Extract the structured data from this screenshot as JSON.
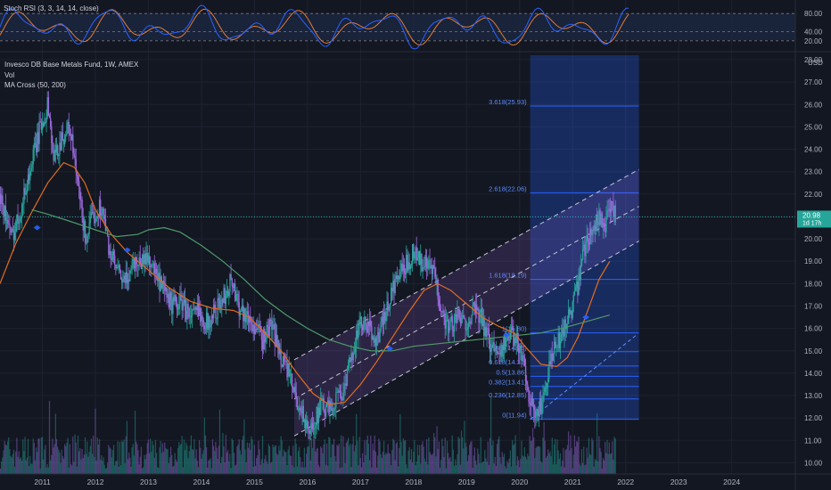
{
  "oscillator": {
    "title": "Stoch RSI (3, 3, 14, 14, close)",
    "levels": [
      80,
      40,
      20
    ],
    "level_labels": [
      "80.00",
      "40.00",
      "20.00"
    ]
  },
  "main": {
    "symbol_line": "Invesco DB Base Metals Fund, 1W, AMEX",
    "vol_label": "Vol",
    "ma_label": "MA Cross (50, 200)"
  },
  "colors": {
    "background": "#131722",
    "candle_up": "#26a69a",
    "candle_down": "#9c6ade",
    "ma50": "#e06c1f",
    "ma200": "#4f9a6a",
    "channel": "#c3c7d0",
    "fib": "#2962ff",
    "price_line": "#26a69a",
    "stoch_k": "#2962ff",
    "stoch_d": "#e07b39"
  },
  "chart_data": {
    "type": "candlestick",
    "title": "Invesco DB Base Metals Fund, 1W, AMEX",
    "currency": "USD",
    "price_axis": {
      "ylim": [
        9.5,
        28.2
      ],
      "tick_labels": [
        "28.00",
        "27.00",
        "26.00",
        "25.00",
        "24.00",
        "23.00",
        "22.00",
        "21.00",
        "20.00",
        "19.00",
        "18.00",
        "17.00",
        "16.00",
        "15.00",
        "14.00",
        "13.00",
        "12.00",
        "11.00",
        "10.00"
      ],
      "ticks": [
        28,
        27,
        26,
        25,
        24,
        23,
        22,
        21,
        20,
        19,
        18,
        17,
        16,
        15,
        14,
        13,
        12,
        11,
        10
      ]
    },
    "time_axis": {
      "tick_labels": [
        "2011",
        "2012",
        "2013",
        "2014",
        "2015",
        "2016",
        "2017",
        "2018",
        "2019",
        "2020",
        "2021",
        "2022",
        "2023",
        "2024"
      ],
      "ticks": [
        2011,
        2012,
        2013,
        2014,
        2015,
        2016,
        2017,
        2018,
        2019,
        2020,
        2021,
        2022,
        2023,
        2024
      ],
      "xlim": [
        2010.2,
        2025.2
      ]
    },
    "last_price": {
      "value": 20.98,
      "label": "20.98",
      "countdown": "1d 17h"
    },
    "price_path": [
      [
        2010.2,
        22.0
      ],
      [
        2010.4,
        20.0
      ],
      [
        2010.6,
        21.5
      ],
      [
        2010.8,
        23.5
      ],
      [
        2010.95,
        25.0
      ],
      [
        2011.1,
        26.0
      ],
      [
        2011.2,
        23.5
      ],
      [
        2011.35,
        24.5
      ],
      [
        2011.5,
        25.0
      ],
      [
        2011.65,
        22.5
      ],
      [
        2011.8,
        20.0
      ],
      [
        2011.95,
        21.0
      ],
      [
        2012.1,
        21.5
      ],
      [
        2012.25,
        19.5
      ],
      [
        2012.4,
        18.5
      ],
      [
        2012.55,
        18.0
      ],
      [
        2012.7,
        19.0
      ],
      [
        2012.85,
        19.0
      ],
      [
        2013.0,
        19.2
      ],
      [
        2013.15,
        18.2
      ],
      [
        2013.3,
        17.5
      ],
      [
        2013.45,
        17.0
      ],
      [
        2013.6,
        17.2
      ],
      [
        2013.8,
        16.5
      ],
      [
        2013.95,
        16.8
      ],
      [
        2014.1,
        16.2
      ],
      [
        2014.25,
        16.8
      ],
      [
        2014.4,
        17.3
      ],
      [
        2014.55,
        18.2
      ],
      [
        2014.7,
        17.0
      ],
      [
        2014.85,
        16.5
      ],
      [
        2015.0,
        16.0
      ],
      [
        2015.15,
        15.5
      ],
      [
        2015.3,
        16.2
      ],
      [
        2015.45,
        15.0
      ],
      [
        2015.6,
        14.2
      ],
      [
        2015.75,
        13.0
      ],
      [
        2015.9,
        12.2
      ],
      [
        2016.0,
        11.2
      ],
      [
        2016.1,
        11.8
      ],
      [
        2016.25,
        12.5
      ],
      [
        2016.4,
        12.3
      ],
      [
        2016.55,
        13.0
      ],
      [
        2016.7,
        13.3
      ],
      [
        2016.85,
        15.2
      ],
      [
        2017.0,
        16.2
      ],
      [
        2017.15,
        16.0
      ],
      [
        2017.3,
        15.5
      ],
      [
        2017.45,
        16.5
      ],
      [
        2017.6,
        17.8
      ],
      [
        2017.75,
        18.5
      ],
      [
        2017.9,
        19.0
      ],
      [
        2018.0,
        19.6
      ],
      [
        2018.1,
        19.0
      ],
      [
        2018.2,
        18.8
      ],
      [
        2018.35,
        18.6
      ],
      [
        2018.5,
        17.0
      ],
      [
        2018.65,
        16.0
      ],
      [
        2018.8,
        16.5
      ],
      [
        2018.95,
        16.2
      ],
      [
        2019.1,
        16.8
      ],
      [
        2019.25,
        16.5
      ],
      [
        2019.4,
        15.5
      ],
      [
        2019.55,
        15.0
      ],
      [
        2019.7,
        15.3
      ],
      [
        2019.85,
        15.7
      ],
      [
        2020.0,
        15.2
      ],
      [
        2020.1,
        14.0
      ],
      [
        2020.2,
        12.6
      ],
      [
        2020.3,
        11.95
      ],
      [
        2020.45,
        13.0
      ],
      [
        2020.6,
        14.8
      ],
      [
        2020.75,
        15.5
      ],
      [
        2020.9,
        16.5
      ],
      [
        2021.0,
        17.0
      ],
      [
        2021.1,
        18.0
      ],
      [
        2021.2,
        19.5
      ],
      [
        2021.35,
        20.5
      ],
      [
        2021.5,
        21.0
      ],
      [
        2021.6,
        20.5
      ],
      [
        2021.7,
        21.3
      ],
      [
        2021.8,
        20.98
      ]
    ],
    "indicators": [
      {
        "name": "MA 50",
        "color": "#e06c1f",
        "points": [
          [
            2010.2,
            18.0
          ],
          [
            2010.5,
            19.8
          ],
          [
            2010.8,
            21.2
          ],
          [
            2011.1,
            22.5
          ],
          [
            2011.4,
            23.4
          ],
          [
            2011.6,
            23.2
          ],
          [
            2011.8,
            22.5
          ],
          [
            2012.0,
            21.3
          ],
          [
            2012.3,
            20.2
          ],
          [
            2012.6,
            19.4
          ],
          [
            2013.0,
            18.6
          ],
          [
            2013.4,
            17.8
          ],
          [
            2013.8,
            17.2
          ],
          [
            2014.2,
            16.9
          ],
          [
            2014.6,
            16.8
          ],
          [
            2014.9,
            16.5
          ],
          [
            2015.2,
            15.8
          ],
          [
            2015.5,
            15.0
          ],
          [
            2015.8,
            14.0
          ],
          [
            2016.1,
            13.1
          ],
          [
            2016.4,
            12.6
          ],
          [
            2016.7,
            12.7
          ],
          [
            2017.0,
            13.5
          ],
          [
            2017.3,
            14.5
          ],
          [
            2017.6,
            15.6
          ],
          [
            2017.9,
            16.7
          ],
          [
            2018.2,
            17.7
          ],
          [
            2018.45,
            18.0
          ],
          [
            2018.7,
            17.7
          ],
          [
            2019.0,
            17.1
          ],
          [
            2019.3,
            16.5
          ],
          [
            2019.6,
            16.1
          ],
          [
            2019.9,
            15.8
          ],
          [
            2020.1,
            15.2
          ],
          [
            2020.4,
            14.4
          ],
          [
            2020.7,
            14.3
          ],
          [
            2020.9,
            14.7
          ],
          [
            2021.1,
            15.6
          ],
          [
            2021.3,
            16.9
          ],
          [
            2021.5,
            18.2
          ],
          [
            2021.7,
            19.0
          ]
        ]
      },
      {
        "name": "MA 200",
        "color": "#4f9a6a",
        "points": [
          [
            2010.8,
            21.3
          ],
          [
            2011.1,
            21.1
          ],
          [
            2011.5,
            20.8
          ],
          [
            2012.0,
            20.4
          ],
          [
            2012.4,
            20.1
          ],
          [
            2012.8,
            20.2
          ],
          [
            2013.0,
            20.4
          ],
          [
            2013.3,
            20.5
          ],
          [
            2013.6,
            20.3
          ],
          [
            2014.0,
            19.7
          ],
          [
            2014.4,
            19.0
          ],
          [
            2014.8,
            18.2
          ],
          [
            2015.2,
            17.3
          ],
          [
            2015.6,
            16.6
          ],
          [
            2016.0,
            16.0
          ],
          [
            2016.4,
            15.5
          ],
          [
            2016.8,
            15.2
          ],
          [
            2017.2,
            15.0
          ],
          [
            2017.6,
            15.0
          ],
          [
            2018.0,
            15.2
          ],
          [
            2018.4,
            15.3
          ],
          [
            2018.8,
            15.4
          ],
          [
            2019.2,
            15.5
          ],
          [
            2019.6,
            15.6
          ],
          [
            2020.0,
            15.7
          ],
          [
            2020.4,
            15.8
          ],
          [
            2020.8,
            16.0
          ],
          [
            2021.1,
            16.2
          ],
          [
            2021.4,
            16.4
          ],
          [
            2021.7,
            16.6
          ]
        ]
      }
    ],
    "ma_cross_markers": [
      [
        2010.9,
        20.5
      ],
      [
        2012.6,
        19.5
      ],
      [
        2017.55,
        15.1
      ],
      [
        2019.75,
        15.7
      ],
      [
        2021.25,
        16.5
      ]
    ],
    "regression_channel": {
      "upper": [
        [
          2015.75,
          14.6
        ],
        [
          2022.25,
          23.1
        ]
      ],
      "middle": [
        [
          2015.75,
          12.85
        ],
        [
          2022.25,
          21.45
        ]
      ],
      "lower": [
        [
          2015.75,
          11.2
        ],
        [
          2022.25,
          19.9
        ]
      ]
    },
    "fib_extension": {
      "x_range": [
        2020.2,
        2022.25
      ],
      "levels": [
        {
          "label": "0(11.94)",
          "value": 11.94
        },
        {
          "label": "0.236(12.85)",
          "value": 12.85
        },
        {
          "label": "0.382(13.41)",
          "value": 13.41
        },
        {
          "label": "0.5(13.86)",
          "value": 13.86
        },
        {
          "label": "0.618(14.32)",
          "value": 14.32
        },
        {
          "label": "0.786(14.96)",
          "value": 14.96
        },
        {
          "label": "1(15.80)",
          "value": 15.8
        },
        {
          "label": "1.618(18.19)",
          "value": 18.19
        },
        {
          "label": "2.618(22.06)",
          "value": 22.06
        },
        {
          "label": "3.618(25.93)",
          "value": 25.93
        }
      ],
      "trend_line": [
        [
          2020.2,
          11.94
        ],
        [
          2022.2,
          15.7
        ]
      ]
    },
    "volume_note": "weekly volume bars, relative heights only"
  }
}
